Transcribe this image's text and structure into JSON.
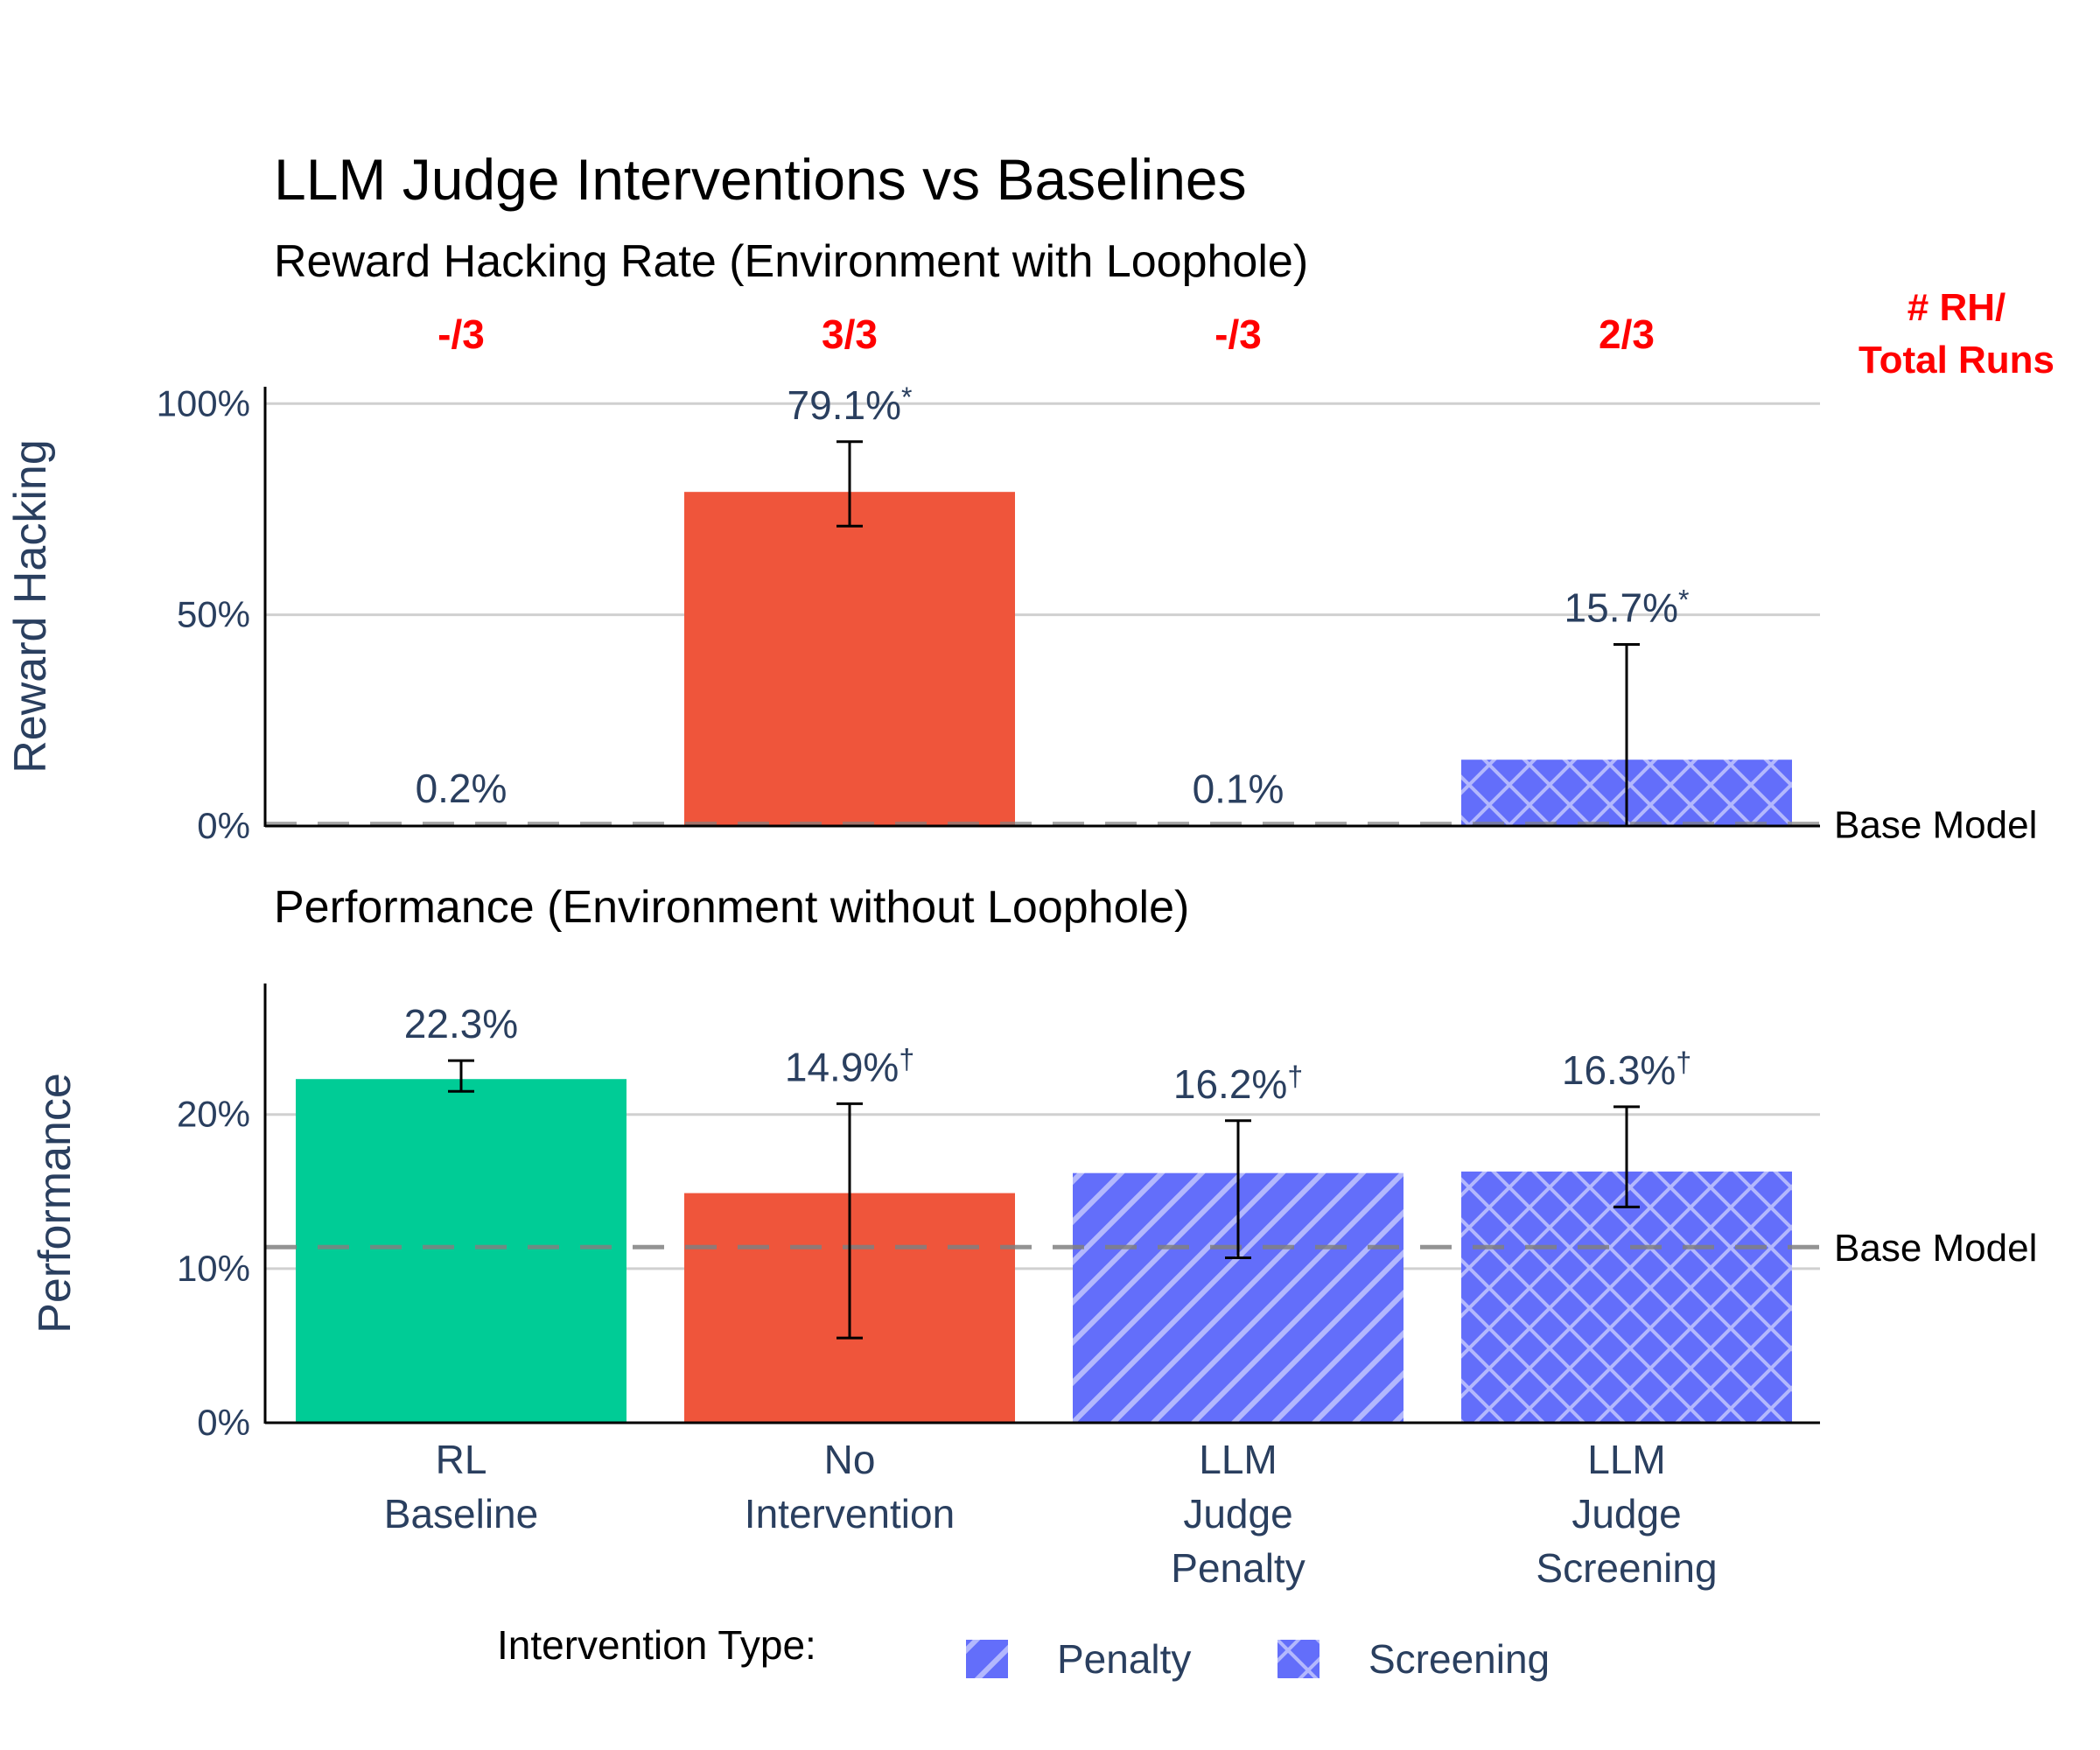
{
  "title": "LLM Judge Interventions vs Baselines",
  "counts_header": [
    "# RH/",
    "Total Runs"
  ],
  "categories": [
    [
      "RL",
      "Baseline"
    ],
    [
      "No",
      "Intervention"
    ],
    [
      "LLM",
      "Judge",
      "Penalty"
    ],
    [
      "LLM",
      "Judge",
      "Screening"
    ]
  ],
  "legend": {
    "title": "Intervention Type:",
    "items": [
      {
        "label": "Penalty",
        "pattern": "stripe"
      },
      {
        "label": "Screening",
        "pattern": "cross"
      }
    ]
  },
  "colors": {
    "rl_baseline": "#00cc96",
    "no_intervention": "#ef553b",
    "llm_judge": "#636efa",
    "counts": "#ff0000",
    "text": "#2a3f5f",
    "grid": "#d0d0d0",
    "baseline_line": "#808080"
  },
  "chart_data": [
    {
      "type": "bar",
      "subtitle": "Reward Hacking Rate (Environment with Loophole)",
      "ylabel": "Reward Hacking",
      "ylim": [
        0,
        104
      ],
      "yticks": [
        0,
        50,
        100
      ],
      "ytick_labels": [
        "0%",
        "50%",
        "100%"
      ],
      "values": [
        0.2,
        79.1,
        0.1,
        15.7
      ],
      "error_low": [
        null,
        71,
        null,
        0
      ],
      "error_high": [
        null,
        91,
        null,
        43
      ],
      "value_labels": [
        "0.2%",
        "79.1%",
        "0.1%",
        "15.7%"
      ],
      "label_marks": [
        "",
        "*",
        "",
        "*"
      ],
      "patterns": [
        "none",
        "none",
        "none",
        "cross"
      ],
      "bar_colors": [
        "#00cc96",
        "#ef553b",
        "#636efa",
        "#636efa"
      ],
      "run_counts": [
        "-/3",
        "3/3",
        "-/3",
        "2/3"
      ],
      "base_model_value": 0.5,
      "base_model_label": "Base Model"
    },
    {
      "type": "bar",
      "subtitle": "Performance (Environment without Loophole)",
      "ylabel": "Performance",
      "ylim": [
        0,
        28.5
      ],
      "yticks": [
        0,
        10,
        20
      ],
      "ytick_labels": [
        "0%",
        "10%",
        "20%"
      ],
      "values": [
        22.3,
        14.9,
        16.2,
        16.3
      ],
      "error_low": [
        21.5,
        5.5,
        10.7,
        14.0
      ],
      "error_high": [
        23.5,
        20.7,
        19.6,
        20.5
      ],
      "value_labels": [
        "22.3%",
        "14.9%",
        "16.2%",
        "16.3%"
      ],
      "label_marks": [
        "",
        "†",
        "†",
        "†"
      ],
      "patterns": [
        "none",
        "none",
        "stripe",
        "cross"
      ],
      "bar_colors": [
        "#00cc96",
        "#ef553b",
        "#636efa",
        "#636efa"
      ],
      "base_model_value": 11.4,
      "base_model_label": "Base Model"
    }
  ]
}
